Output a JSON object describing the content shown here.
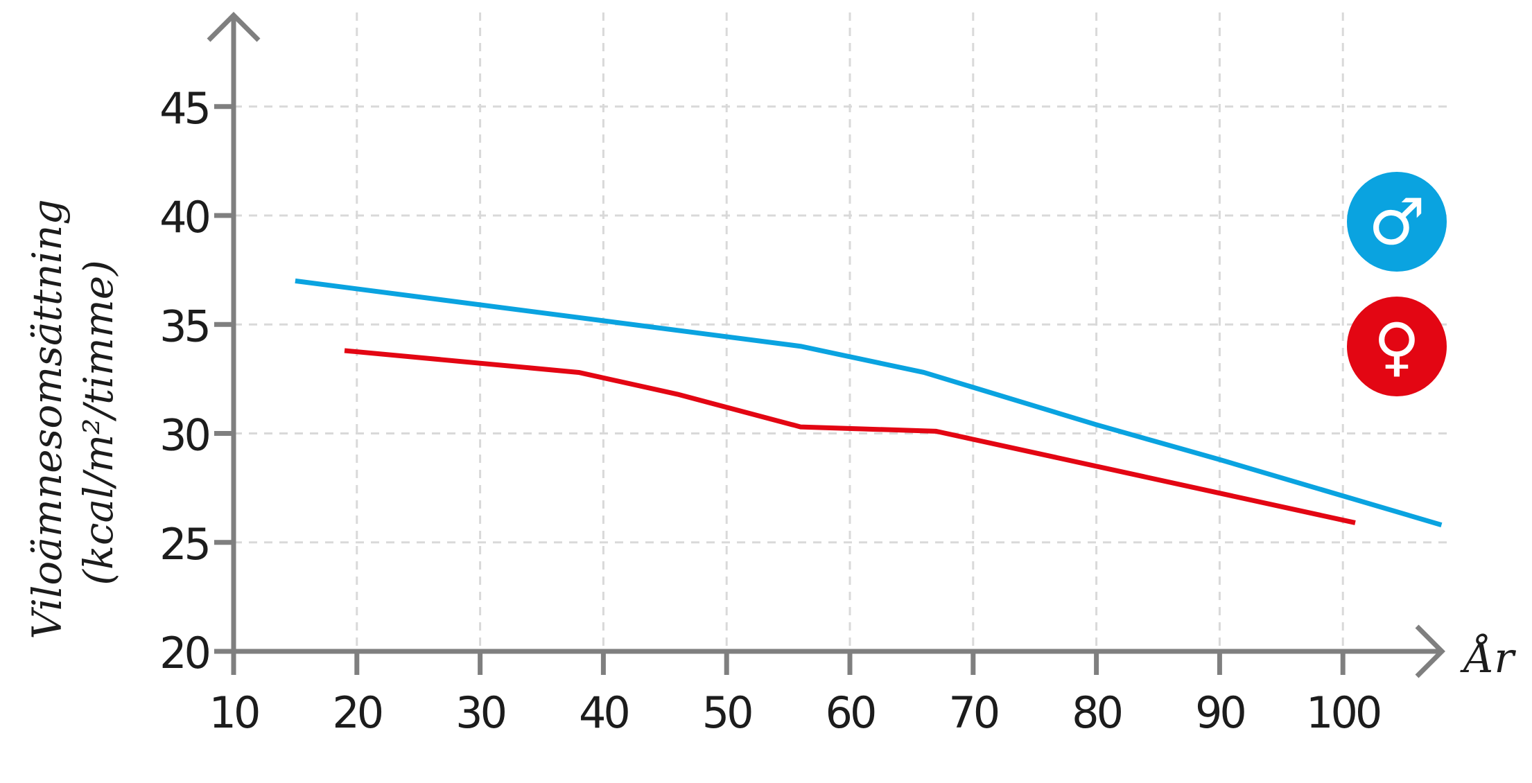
{
  "chart_data": {
    "type": "line",
    "xlabel": "År",
    "ylabel": [
      "Viloämnesomsättning",
      "(kcal/m²/timme)"
    ],
    "xlim": [
      10,
      110
    ],
    "ylim": [
      20,
      49
    ],
    "xticks": [
      10,
      20,
      30,
      40,
      50,
      60,
      70,
      80,
      90,
      100
    ],
    "yticks": [
      20,
      25,
      30,
      35,
      40,
      45
    ],
    "grid": true,
    "legend": "right",
    "series": [
      {
        "icon": "male-symbol-icon",
        "symbol": "♂",
        "color": "#0aa3e0",
        "x": [
          15,
          56,
          66,
          80,
          90,
          108
        ],
        "y": [
          37.0,
          34.0,
          32.8,
          30.4,
          28.8,
          25.8
        ]
      },
      {
        "icon": "female-symbol-icon",
        "symbol": "♀",
        "color": "#e30613",
        "x": [
          19,
          38,
          46,
          56,
          67,
          101
        ],
        "y": [
          33.8,
          32.8,
          31.8,
          30.3,
          30.1,
          25.9
        ]
      }
    ]
  }
}
